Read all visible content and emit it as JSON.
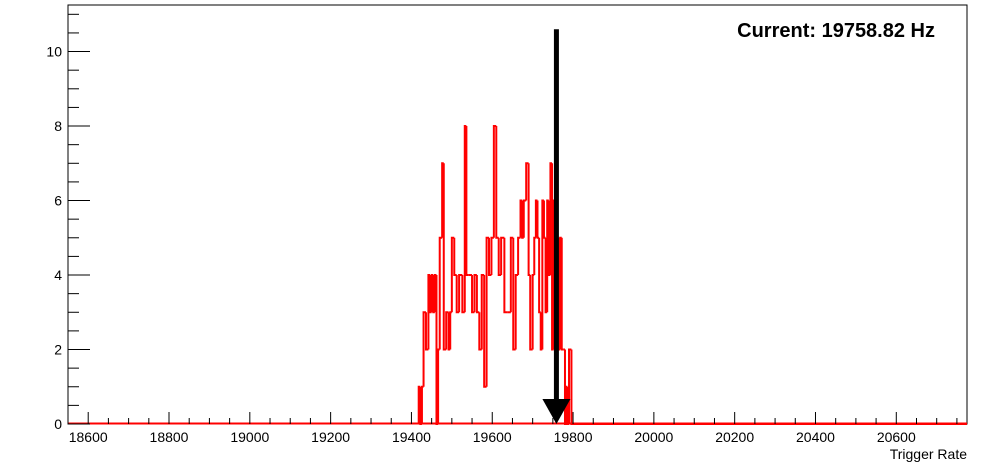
{
  "chart_data": {
    "type": "histogram",
    "xlabel": "Trigger Rate",
    "ylabel": "",
    "xlim": [
      18550,
      20775
    ],
    "ylim": [
      0,
      11.25
    ],
    "x_ticks": [
      18600,
      18800,
      19000,
      19200,
      19400,
      19600,
      19800,
      20000,
      20200,
      20400,
      20600
    ],
    "y_ticks": [
      0,
      2,
      4,
      6,
      8,
      10
    ],
    "annotation": "Current: 19758.82 Hz",
    "current_value": 19758.82,
    "arrow": {
      "x": 19758.82,
      "y_from": 10.6,
      "y_to": 0
    },
    "bins": [
      [
        19418,
        19422,
        1
      ],
      [
        19422,
        19426,
        0
      ],
      [
        19426,
        19430,
        1
      ],
      [
        19430,
        19436,
        3
      ],
      [
        19436,
        19442,
        2
      ],
      [
        19442,
        19446,
        4
      ],
      [
        19446,
        19450,
        3
      ],
      [
        19450,
        19454,
        4
      ],
      [
        19454,
        19458,
        3
      ],
      [
        19458,
        19462,
        4
      ],
      [
        19462,
        19466,
        0
      ],
      [
        19466,
        19470,
        2
      ],
      [
        19470,
        19476,
        5
      ],
      [
        19476,
        19480,
        7
      ],
      [
        19480,
        19486,
        2
      ],
      [
        19486,
        19492,
        3
      ],
      [
        19492,
        19496,
        2
      ],
      [
        19496,
        19500,
        3
      ],
      [
        19500,
        19506,
        5
      ],
      [
        19506,
        19512,
        4
      ],
      [
        19512,
        19518,
        3
      ],
      [
        19518,
        19526,
        4
      ],
      [
        19526,
        19532,
        3
      ],
      [
        19532,
        19536,
        8
      ],
      [
        19536,
        19542,
        4
      ],
      [
        19542,
        19550,
        4
      ],
      [
        19550,
        19556,
        3
      ],
      [
        19556,
        19562,
        4
      ],
      [
        19562,
        19568,
        3
      ],
      [
        19568,
        19574,
        2
      ],
      [
        19574,
        19580,
        4
      ],
      [
        19580,
        19586,
        1
      ],
      [
        19586,
        19592,
        5
      ],
      [
        19592,
        19598,
        4
      ],
      [
        19598,
        19604,
        5
      ],
      [
        19604,
        19610,
        8
      ],
      [
        19610,
        19616,
        5
      ],
      [
        19616,
        19622,
        4
      ],
      [
        19622,
        19630,
        5
      ],
      [
        19630,
        19638,
        3
      ],
      [
        19638,
        19646,
        3
      ],
      [
        19646,
        19652,
        5
      ],
      [
        19652,
        19658,
        2
      ],
      [
        19658,
        19664,
        4
      ],
      [
        19664,
        19670,
        5
      ],
      [
        19670,
        19674,
        6
      ],
      [
        19674,
        19678,
        5
      ],
      [
        19678,
        19684,
        6
      ],
      [
        19684,
        19690,
        7
      ],
      [
        19690,
        19694,
        4
      ],
      [
        19694,
        19700,
        2
      ],
      [
        19700,
        19704,
        4
      ],
      [
        19704,
        19708,
        5
      ],
      [
        19708,
        19712,
        6
      ],
      [
        19712,
        19716,
        5
      ],
      [
        19716,
        19720,
        3
      ],
      [
        19720,
        19724,
        2
      ],
      [
        19724,
        19728,
        6
      ],
      [
        19728,
        19732,
        5
      ],
      [
        19732,
        19736,
        3
      ],
      [
        19736,
        19740,
        6
      ],
      [
        19740,
        19744,
        4
      ],
      [
        19744,
        19748,
        7
      ],
      [
        19748,
        19752,
        2
      ],
      [
        19752,
        19756,
        6
      ],
      [
        19756,
        19760,
        3
      ],
      [
        19760,
        19764,
        5
      ],
      [
        19764,
        19768,
        2
      ],
      [
        19768,
        19772,
        5
      ],
      [
        19772,
        19776,
        2
      ],
      [
        19776,
        19780,
        2
      ],
      [
        19780,
        19784,
        0
      ],
      [
        19784,
        19786,
        1
      ],
      [
        19786,
        19790,
        0
      ],
      [
        19790,
        19796,
        2
      ],
      [
        19796,
        20775,
        0
      ]
    ]
  }
}
